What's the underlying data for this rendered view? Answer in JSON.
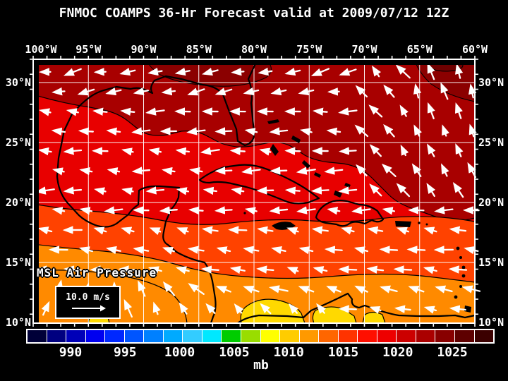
{
  "title": "FNMOC COAMPS 36-Hr Forecast valid at 2009/07/12 12Z",
  "axes": {
    "lon_ticks": [
      "100°W",
      "95°W",
      "90°W",
      "85°W",
      "80°W",
      "75°W",
      "70°W",
      "65°W",
      "60°W"
    ],
    "lat_ticks": [
      "30°N",
      "25°N",
      "20°N",
      "15°N",
      "10°N"
    ]
  },
  "legend": {
    "field_label": "MSL Air Pressure",
    "wind_scale_label": "10.0 m/s"
  },
  "colorbar": {
    "unit_label": "mb",
    "tick_labels": [
      "990",
      "995",
      "1000",
      "1005",
      "1010",
      "1015",
      "1020",
      "1025"
    ],
    "cell_colors": [
      "#000038",
      "#000080",
      "#0000B8",
      "#0000F0",
      "#0028FF",
      "#0055FF",
      "#0080FF",
      "#00AAFF",
      "#33CCFF",
      "#00E8FF",
      "#00CC00",
      "#99DD00",
      "#FFFF00",
      "#FFCC00",
      "#FF9900",
      "#FF6600",
      "#FF3300",
      "#FF0F00",
      "#EE0000",
      "#CC0000",
      "#AA0000",
      "#880000",
      "#5E0000",
      "#3B0000"
    ]
  },
  "pressure_field": {
    "fill_colors": {
      "dark_red_high": "#A80000",
      "darker_patch": "#8B0000",
      "darkest_patch": "#6E0000",
      "red": "#E80000",
      "orange_red": "#FF4200",
      "orange": "#FF8A00",
      "yellow": "#FFD900"
    },
    "contour_color": "#000000",
    "coast_color": "#000000",
    "grid_color": "#FFFFFF"
  },
  "wind": {
    "arrow_color": "#FFFFFF"
  }
}
